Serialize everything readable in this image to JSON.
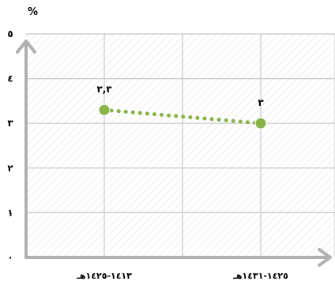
{
  "chart_data": {
    "type": "line",
    "unit_label": "%",
    "categories": [
      "١٤١٣-١٤٢٥هـ",
      "١٤٢٥-١٤٣١هـ"
    ],
    "values": [
      3.3,
      3.0
    ],
    "value_labels": [
      "٣,٣",
      "٣"
    ],
    "ylim": [
      0,
      5
    ],
    "y_ticks": [
      {
        "value": 0,
        "label": "٠"
      },
      {
        "value": 1,
        "label": "١"
      },
      {
        "value": 2,
        "label": "٢"
      },
      {
        "value": 3,
        "label": "٣"
      },
      {
        "value": 4,
        "label": "٤"
      },
      {
        "value": 5,
        "label": "٥"
      }
    ],
    "grid": true,
    "line_style": "dotted",
    "line_color": "#8ab34a",
    "marker_color": "#8ab34a",
    "grid_color": "#c8c8c8",
    "axis_color": "#b0b0b0",
    "hatch_color": "#dcdcdc"
  }
}
